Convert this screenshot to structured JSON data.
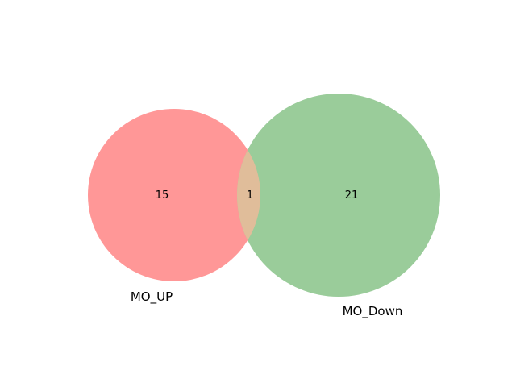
{
  "venn": {
    "sets": [
      {
        "label": "MO_UP",
        "color": "#ff9797"
      },
      {
        "label": "MO_Down",
        "color": "#9acc9a"
      }
    ],
    "overlap_color": "#e0bd9a",
    "counts": {
      "left_only": "15",
      "intersection": "1",
      "right_only": "21"
    }
  }
}
